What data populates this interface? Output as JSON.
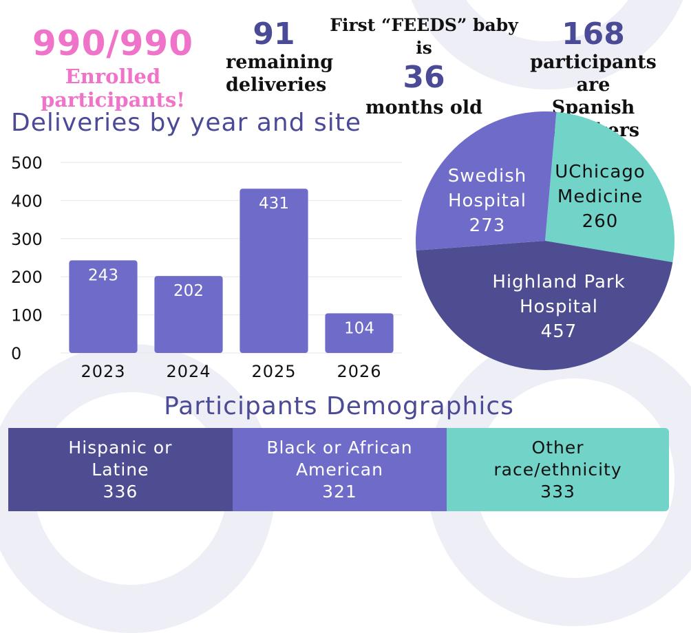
{
  "stats": {
    "enrolled": {
      "value": "990/990",
      "label": "Enrolled participants!"
    },
    "remaining": {
      "value": "91",
      "label_line1": "remaining",
      "label_line2": "deliveries"
    },
    "first_baby": {
      "label_top": "First “FEEDS” baby is",
      "value": "36",
      "label_bottom": "months old"
    },
    "spanish": {
      "value": "168",
      "label_line1": "participants are",
      "label_line2": "Spanish speakers"
    }
  },
  "colors": {
    "pink": "#ef73c8",
    "navy": "#4b4a96",
    "purple": "#6e6cc8",
    "dark_purple": "#4e4d92",
    "teal": "#72d3c8"
  },
  "chart_data": [
    {
      "type": "bar",
      "title": "Deliveries by year and site",
      "categories": [
        "2023",
        "2024",
        "2025",
        "2026"
      ],
      "values": [
        243,
        202,
        431,
        104
      ],
      "ylim": [
        0,
        500
      ],
      "yticks": [
        0,
        100,
        200,
        300,
        400,
        500
      ],
      "grid": true,
      "color": "#6e6cc8"
    },
    {
      "type": "pie",
      "slices": [
        {
          "label_lines": [
            "UChicago",
            "Medicine"
          ],
          "value": 260,
          "color": "#72d3c8",
          "text_color": "#111111"
        },
        {
          "label_lines": [
            "Highland Park",
            "Hospital"
          ],
          "value": 457,
          "color": "#4e4d92",
          "text_color": "#ffffff"
        },
        {
          "label_lines": [
            "Swedish",
            "Hospital"
          ],
          "value": 273,
          "color": "#6e6cc8",
          "text_color": "#ffffff"
        }
      ]
    },
    {
      "type": "bar",
      "orientation": "stacked-horizontal",
      "title": "Participants Demographics",
      "segments": [
        {
          "label_lines": [
            "Hispanic or",
            "Latine"
          ],
          "value": 336,
          "color": "#4e4d92",
          "text_color": "#ffffff"
        },
        {
          "label_lines": [
            "Black or African",
            "American"
          ],
          "value": 321,
          "color": "#6e6cc8",
          "text_color": "#ffffff"
        },
        {
          "label_lines": [
            "Other",
            "race/ethnicity"
          ],
          "value": 333,
          "color": "#72d3c8",
          "text_color": "#111111"
        }
      ]
    }
  ]
}
